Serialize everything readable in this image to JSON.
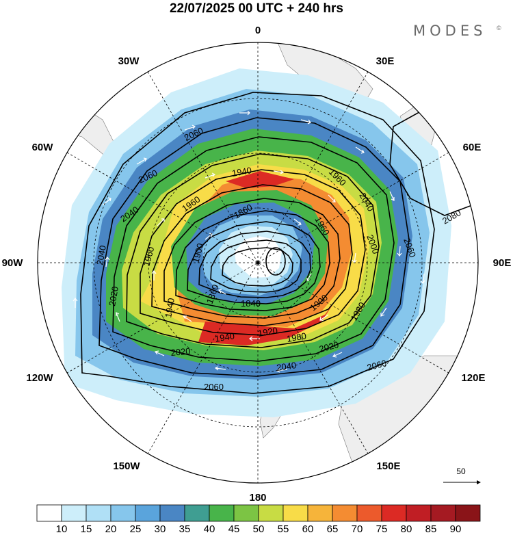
{
  "header": {
    "title": "22/07/2025  00 UTC  + 240 hrs",
    "brand": "MODES",
    "brand_mark": "©"
  },
  "map": {
    "projection": "south-polar-stereographic",
    "meridian_labels": [
      {
        "text": "0"
      },
      {
        "text": "30E"
      },
      {
        "text": "60E"
      },
      {
        "text": "90E"
      },
      {
        "text": "120E"
      },
      {
        "text": "150E"
      },
      {
        "text": "180"
      },
      {
        "text": "150W"
      },
      {
        "text": "120W"
      },
      {
        "text": "90W"
      },
      {
        "text": "60W"
      },
      {
        "text": "30W"
      }
    ],
    "contour_labels": [
      "2060",
      "2060",
      "2040",
      "1960",
      "1940",
      "1860",
      "1960",
      "1900",
      "1940",
      "2040",
      "2080",
      "1960",
      "1960",
      "2000",
      "2060",
      "1940",
      "1920",
      "1900",
      "1980",
      "1860",
      "1840",
      "2020",
      "2020",
      "2040",
      "2020",
      "2060",
      "2060",
      "2040",
      "1980"
    ],
    "wind_reference": {
      "value": "50"
    }
  },
  "colorbar": {
    "tick_labels": [
      "10",
      "15",
      "20",
      "25",
      "30",
      "35",
      "40",
      "45",
      "50",
      "55",
      "60",
      "65",
      "70",
      "75",
      "80",
      "85",
      "90"
    ],
    "colors": [
      "#ffffff",
      "#cdeefa",
      "#b0e0f6",
      "#86c6ec",
      "#5aa4dc",
      "#4a86c4",
      "#3f9e92",
      "#48b44a",
      "#7cc444",
      "#c8dc44",
      "#f8dc48",
      "#f6b43a",
      "#f48c32",
      "#ec5a2c",
      "#dc2a24",
      "#c01e24",
      "#a51a22",
      "#8a1418"
    ]
  }
}
